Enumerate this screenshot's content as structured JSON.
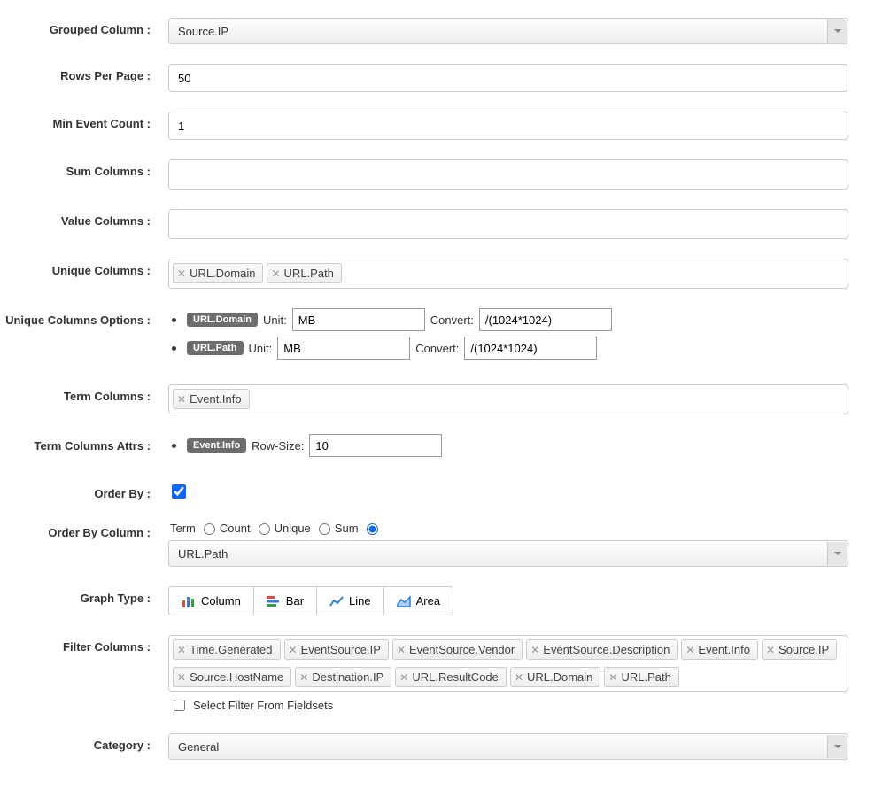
{
  "labels": {
    "grouped_column": "Grouped Column :",
    "rows_per_page": "Rows Per Page :",
    "min_event_count": "Min Event Count :",
    "sum_columns": "Sum Columns :",
    "value_columns": "Value Columns :",
    "unique_columns": "Unique Columns :",
    "unique_columns_options": "Unique Columns Options :",
    "term_columns": "Term Columns :",
    "term_columns_attrs": "Term Columns Attrs :",
    "order_by": "Order By :",
    "order_by_column": "Order By Column :",
    "graph_type": "Graph Type :",
    "filter_columns": "Filter Columns :",
    "category": "Category :"
  },
  "values": {
    "grouped_column": "Source.IP",
    "rows_per_page": "50",
    "min_event_count": "1",
    "order_by_column": "URL.Path",
    "category": "General"
  },
  "unique_columns": [
    "URL.Domain",
    "URL.Path"
  ],
  "unique_columns_options": [
    {
      "name": "URL.Domain",
      "unit_label": "Unit:",
      "unit": "MB",
      "convert_label": "Convert:",
      "convert": "/(1024*1024)"
    },
    {
      "name": "URL.Path",
      "unit_label": "Unit:",
      "unit": "MB",
      "convert_label": "Convert:",
      "convert": "/(1024*1024)"
    }
  ],
  "term_columns": [
    "Event.Info"
  ],
  "term_columns_attrs": [
    {
      "name": "Event.Info",
      "label": "Row-Size:",
      "value": "10"
    }
  ],
  "order_by_checked": true,
  "order_by_radios": {
    "term": "Term",
    "count": "Count",
    "unique": "Unique",
    "sum": "Sum",
    "selected": "sum"
  },
  "graph_types": {
    "column": "Column",
    "bar": "Bar",
    "line": "Line",
    "area": "Area"
  },
  "filter_columns": [
    "Time.Generated",
    "EventSource.IP",
    "EventSource.Vendor",
    "EventSource.Description",
    "Event.Info",
    "Source.IP",
    "Source.HostName",
    "Destination.IP",
    "URL.ResultCode",
    "URL.Domain",
    "URL.Path"
  ],
  "filter_fieldsets_label": "Select Filter From Fieldsets",
  "colors": {
    "column1": "#e24b3b",
    "column2": "#3a7bd5",
    "column3": "#2aa24a",
    "bar1": "#e24b3b",
    "bar2": "#3a7bd5",
    "bar3": "#2aa24a",
    "line": "#2f7fde",
    "area": "#2f7fde",
    "area_fill": "#a9cdf3"
  }
}
